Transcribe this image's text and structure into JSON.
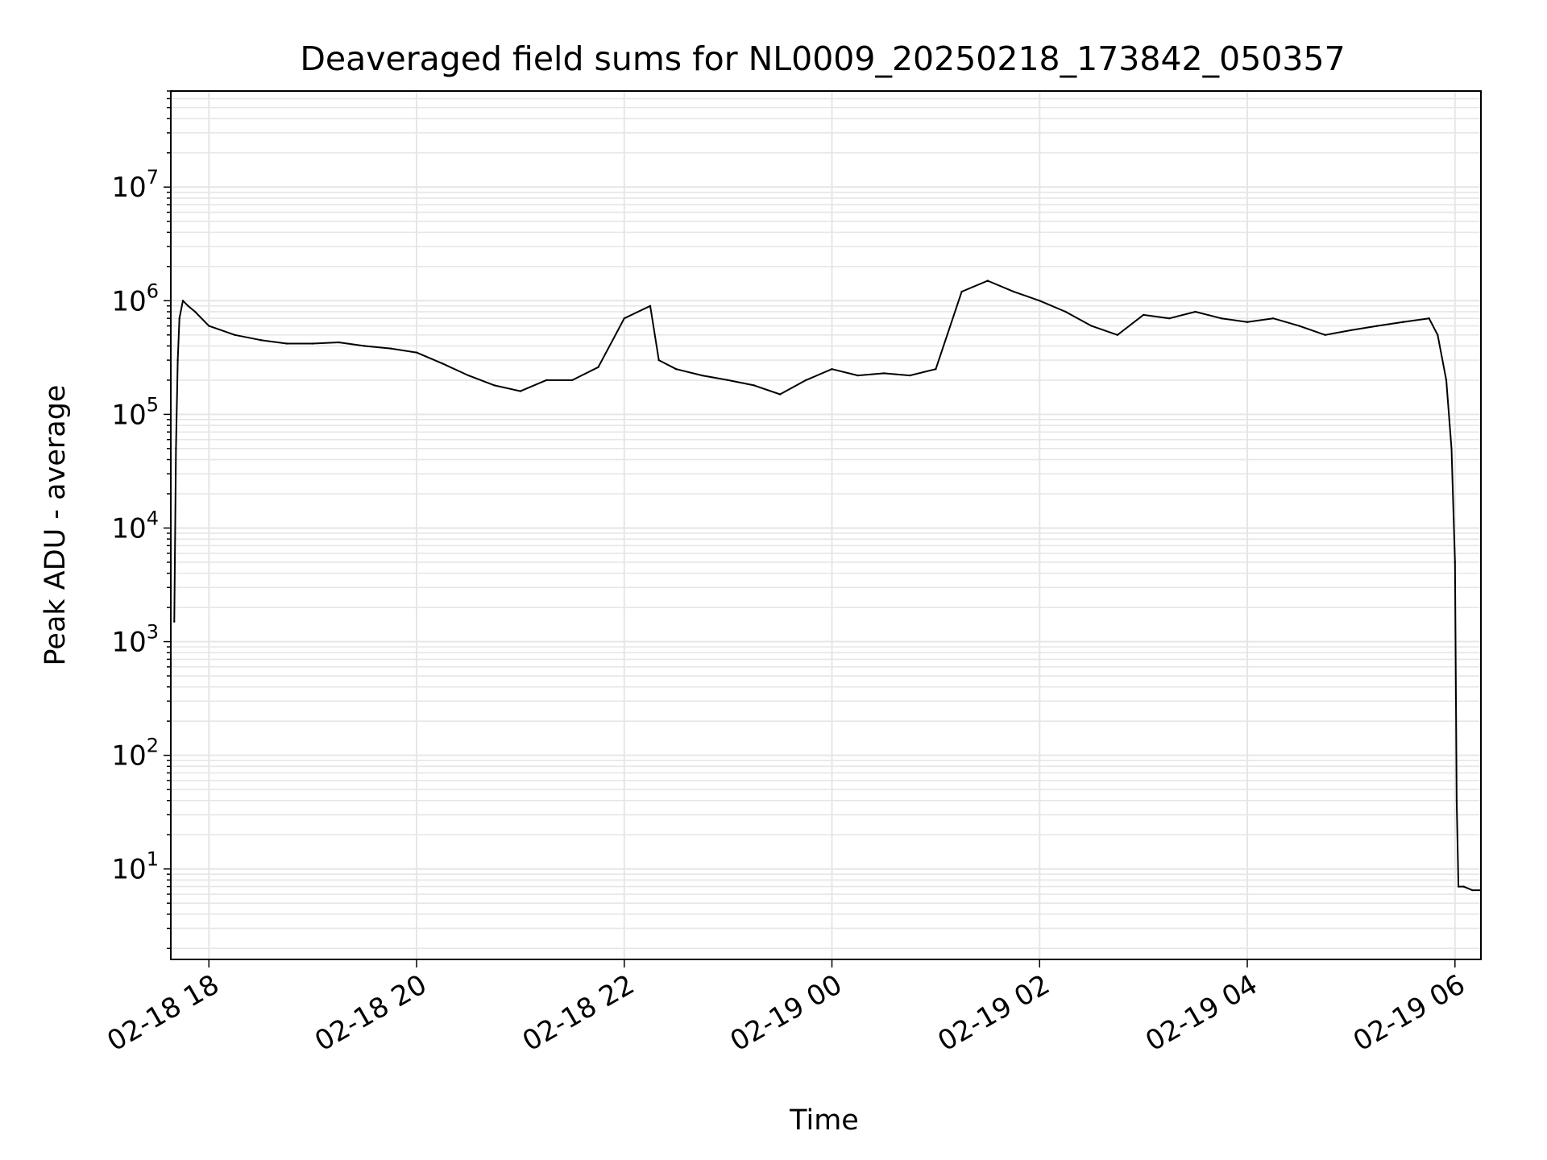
{
  "chart_data": {
    "type": "line",
    "title": "Deaveraged field sums for NL0009_20250218_173842_050357",
    "xlabel": "Time",
    "ylabel": "Peak ADU - average",
    "yscale": "log",
    "grid": true,
    "line_color": "#000000",
    "grid_color": "#e6e6e6",
    "xlim": [
      "2025-02-18 17:38",
      "2025-02-19 06:15"
    ],
    "ylim": [
      1.6,
      70000000
    ],
    "x_ticks": [
      {
        "value": "2025-02-18 18:00",
        "label": "02-18 18"
      },
      {
        "value": "2025-02-18 20:00",
        "label": "02-18 20"
      },
      {
        "value": "2025-02-18 22:00",
        "label": "02-18 22"
      },
      {
        "value": "2025-02-19 00:00",
        "label": "02-19 00"
      },
      {
        "value": "2025-02-19 02:00",
        "label": "02-19 02"
      },
      {
        "value": "2025-02-19 04:00",
        "label": "02-19 04"
      },
      {
        "value": "2025-02-19 06:00",
        "label": "02-19 06"
      }
    ],
    "y_ticks": [
      {
        "value": 10,
        "base": "10",
        "exp": "1"
      },
      {
        "value": 100,
        "base": "10",
        "exp": "2"
      },
      {
        "value": 1000,
        "base": "10",
        "exp": "3"
      },
      {
        "value": 10000,
        "base": "10",
        "exp": "4"
      },
      {
        "value": 100000,
        "base": "10",
        "exp": "5"
      },
      {
        "value": 1000000,
        "base": "10",
        "exp": "6"
      },
      {
        "value": 10000000,
        "base": "10",
        "exp": "7"
      }
    ],
    "series": [
      {
        "x": [
          "2025-02-18 17:40",
          "2025-02-18 17:41",
          "2025-02-18 17:42",
          "2025-02-18 17:43",
          "2025-02-18 17:45",
          "2025-02-18 17:48",
          "2025-02-18 17:52",
          "2025-02-18 18:00",
          "2025-02-18 18:15",
          "2025-02-18 18:30",
          "2025-02-18 18:45",
          "2025-02-18 19:00",
          "2025-02-18 19:15",
          "2025-02-18 19:30",
          "2025-02-18 19:45",
          "2025-02-18 20:00",
          "2025-02-18 20:15",
          "2025-02-18 20:30",
          "2025-02-18 20:45",
          "2025-02-18 21:00",
          "2025-02-18 21:15",
          "2025-02-18 21:30",
          "2025-02-18 21:45",
          "2025-02-18 22:00",
          "2025-02-18 22:15",
          "2025-02-18 22:20",
          "2025-02-18 22:30",
          "2025-02-18 22:45",
          "2025-02-18 23:00",
          "2025-02-18 23:15",
          "2025-02-18 23:30",
          "2025-02-18 23:45",
          "2025-02-19 00:00",
          "2025-02-19 00:15",
          "2025-02-19 00:30",
          "2025-02-19 00:45",
          "2025-02-19 01:00",
          "2025-02-19 01:15",
          "2025-02-19 01:30",
          "2025-02-19 01:45",
          "2025-02-19 02:00",
          "2025-02-19 02:15",
          "2025-02-19 02:30",
          "2025-02-19 02:45",
          "2025-02-19 03:00",
          "2025-02-19 03:15",
          "2025-02-19 03:30",
          "2025-02-19 03:45",
          "2025-02-19 04:00",
          "2025-02-19 04:15",
          "2025-02-19 04:30",
          "2025-02-19 04:45",
          "2025-02-19 05:00",
          "2025-02-19 05:15",
          "2025-02-19 05:30",
          "2025-02-19 05:45",
          "2025-02-19 05:50",
          "2025-02-19 05:55",
          "2025-02-19 05:58",
          "2025-02-19 06:00",
          "2025-02-19 06:01",
          "2025-02-19 06:02",
          "2025-02-19 06:05",
          "2025-02-19 06:10",
          "2025-02-19 06:15"
        ],
        "y": [
          1500,
          50000,
          300000,
          700000,
          1000000,
          900000,
          800000,
          600000,
          500000,
          450000,
          420000,
          420000,
          430000,
          400000,
          380000,
          350000,
          280000,
          220000,
          180000,
          160000,
          200000,
          200000,
          260000,
          700000,
          900000,
          300000,
          250000,
          220000,
          200000,
          180000,
          150000,
          200000,
          250000,
          220000,
          230000,
          220000,
          250000,
          1200000,
          1500000,
          1200000,
          1000000,
          800000,
          600000,
          500000,
          750000,
          700000,
          800000,
          700000,
          650000,
          700000,
          600000,
          500000,
          550000,
          600000,
          650000,
          700000,
          500000,
          200000,
          50000,
          5000,
          40,
          7,
          7,
          6.5,
          6.5
        ]
      }
    ]
  }
}
